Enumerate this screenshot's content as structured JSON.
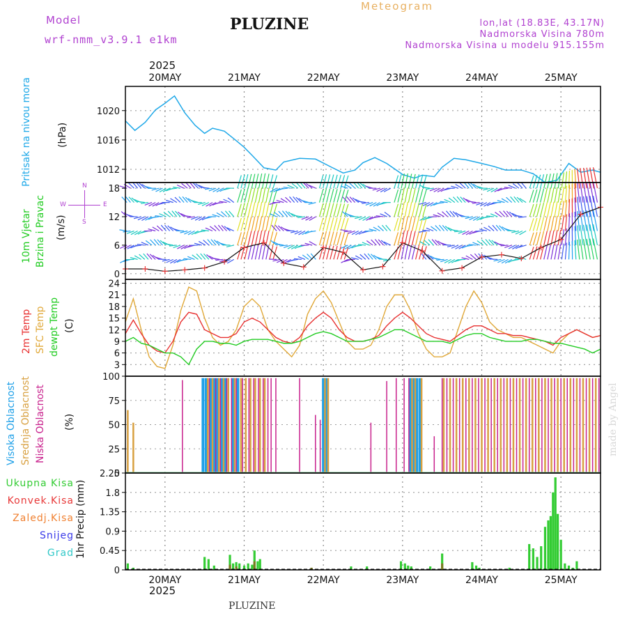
{
  "header": {
    "model_label": "Model",
    "model_name": "wrf-nmm_v3.9.1 e1km",
    "station": "PLUZINE",
    "meteogram": "Meteogram",
    "lonlat": "lon,lat (18.83E, 43.17N)",
    "elevation": "Nadmorska Visina 780m",
    "model_elevation": "Nadmorska Visina u modelu 915.155m",
    "year_top": "2025",
    "year_bottom": "2025",
    "watermark": "made by Angel",
    "footer_station": "PLUZINE"
  },
  "colors": {
    "pressure": "#1ea8e8",
    "wind_label": "#22cc22",
    "temp2m": "#e83030",
    "sfc": "#e0a838",
    "dewpt": "#22cc22",
    "visoka": "#1ea0e8",
    "srednja": "#d8a040",
    "niska": "#c8208c",
    "ukupna": "#33cc33",
    "konvek": "#e83838",
    "zaledj": "#f08030",
    "snijeg": "#3838e8",
    "grad": "#30c8c8",
    "compass": "#b040d0"
  },
  "x_axis": {
    "range_days": [
      0,
      6
    ],
    "date_labels": [
      "20MAY",
      "21MAY",
      "22MAY",
      "23MAY",
      "24MAY",
      "25MAY"
    ],
    "date_positions_days": [
      0.5,
      1.5,
      2.5,
      3.5,
      4.5,
      5.5
    ]
  },
  "panel_labels": {
    "pressure": {
      "name": "Pritisak na nivou mora",
      "unit": "(hPa)"
    },
    "wind": {
      "line1": "10m Vjetar",
      "line2": "Brzina i Pravac",
      "unit": "(m/s)"
    },
    "temp": {
      "t2m": "2m Temp",
      "sfc": "SFC Temp",
      "dew": "dewpt Temp",
      "unit": "(C)"
    },
    "cloud": {
      "high": "Visoka Oblacnost",
      "mid": "Srednja Oblacnost",
      "low": "Niska Oblacnost",
      "unit": "(%)"
    },
    "precip": {
      "unit": "1hr Precip (mm)",
      "legend": [
        "Ukupna Kisa",
        "Konvek.Kisa",
        "Zaledj.Kisa",
        "Snijeg",
        "Grad"
      ]
    }
  },
  "compass": {
    "n": "N",
    "w": "W",
    "e": "E",
    "s": "S"
  },
  "chart_data": [
    {
      "type": "line",
      "ylabel": "Pritisak na nivou mora (hPa)",
      "yticks": [
        1012,
        1016,
        1020
      ],
      "ylim": [
        1010.2,
        1023.3
      ],
      "x": [
        0.0,
        0.12,
        0.25,
        0.38,
        0.5,
        0.62,
        0.75,
        0.88,
        1.0,
        1.1,
        1.25,
        1.4,
        1.5,
        1.6,
        1.75,
        1.9,
        2.0,
        2.2,
        2.4,
        2.6,
        2.75,
        2.9,
        3.0,
        3.15,
        3.3,
        3.5,
        3.65,
        3.75,
        3.9,
        4.0,
        4.15,
        4.3,
        4.5,
        4.65,
        4.8,
        5.0,
        5.15,
        5.3,
        5.45,
        5.6,
        5.75,
        5.9,
        6.0
      ],
      "series": [
        {
          "values": [
            1018.6,
            1017.3,
            1018.4,
            1020.1,
            1021.0,
            1022.0,
            1019.7,
            1018.0,
            1016.9,
            1017.6,
            1017.2,
            1015.9,
            1015.0,
            1013.9,
            1012.2,
            1011.9,
            1013.0,
            1013.5,
            1013.4,
            1012.3,
            1011.5,
            1011.9,
            1012.9,
            1013.6,
            1012.8,
            1011.3,
            1010.8,
            1011.2,
            1011.0,
            1012.3,
            1013.5,
            1013.3,
            1012.8,
            1012.4,
            1011.9,
            1011.9,
            1011.4,
            1010.2,
            1010.5,
            1012.8,
            1011.6,
            1011.9,
            1011.6
          ]
        }
      ]
    },
    {
      "type": "line",
      "ylabel": "10m Vjetar Brzina i Pravac (m/s)",
      "yticks": [
        0,
        6,
        12,
        18
      ],
      "ylim": [
        -1.2,
        19.2
      ],
      "x": [
        0.0,
        0.25,
        0.5,
        0.75,
        1.0,
        1.25,
        1.5,
        1.75,
        2.0,
        2.25,
        2.5,
        2.75,
        3.0,
        3.25,
        3.5,
        3.75,
        4.0,
        4.25,
        4.5,
        4.75,
        5.0,
        5.25,
        5.5,
        5.75,
        6.0
      ],
      "series": [
        {
          "values": [
            1.0,
            1.0,
            0.5,
            0.8,
            1.2,
            2.5,
            5.5,
            6.5,
            2.2,
            1.4,
            5.5,
            4.5,
            0.8,
            1.5,
            6.5,
            4.8,
            0.6,
            1.2,
            3.5,
            4.0,
            3.2,
            5.5,
            7.2,
            12.5,
            14.0
          ]
        }
      ]
    },
    {
      "type": "line",
      "ylabel": "(C)",
      "yticks": [
        3,
        6,
        9,
        12,
        15,
        18,
        21,
        24
      ],
      "ylim": [
        0,
        25
      ],
      "x": [
        0.0,
        0.1,
        0.2,
        0.3,
        0.4,
        0.5,
        0.6,
        0.7,
        0.8,
        0.9,
        1.0,
        1.1,
        1.2,
        1.3,
        1.4,
        1.5,
        1.6,
        1.7,
        1.8,
        1.9,
        2.0,
        2.1,
        2.2,
        2.3,
        2.4,
        2.5,
        2.6,
        2.7,
        2.8,
        2.9,
        3.0,
        3.1,
        3.2,
        3.3,
        3.4,
        3.5,
        3.6,
        3.7,
        3.8,
        3.9,
        4.0,
        4.1,
        4.2,
        4.3,
        4.4,
        4.5,
        4.6,
        4.7,
        4.8,
        4.9,
        5.0,
        5.1,
        5.2,
        5.3,
        5.4,
        5.5,
        5.6,
        5.7,
        5.8,
        5.9,
        6.0
      ],
      "series": [
        {
          "name": "2m Temp",
          "values": [
            11,
            14.5,
            11,
            8,
            6.5,
            6,
            9,
            14,
            16.5,
            16,
            12,
            11,
            10,
            10,
            11,
            14,
            15,
            14,
            12,
            10,
            9,
            8.5,
            10,
            13,
            15,
            16.5,
            15,
            12,
            10,
            9,
            9,
            9.5,
            10.5,
            13,
            15,
            16.5,
            15,
            13,
            11,
            10,
            9.5,
            9,
            10.5,
            12,
            13,
            13,
            12,
            11,
            11,
            10.5,
            10.5,
            10,
            9.5,
            9,
            8,
            10,
            11,
            12,
            11,
            10,
            10.5
          ]
        },
        {
          "name": "SFC Temp",
          "values": [
            14,
            20,
            12,
            5,
            2.5,
            2,
            8,
            17,
            23,
            22,
            15,
            10,
            8,
            9,
            12,
            18,
            20,
            18,
            12,
            9,
            7,
            5,
            8,
            16,
            20,
            22,
            19,
            14,
            9,
            7,
            7,
            8,
            12,
            18,
            21,
            21,
            17,
            11,
            7,
            5,
            5,
            6,
            12,
            18,
            22,
            19,
            14,
            12,
            11,
            10,
            10,
            9,
            8,
            7,
            6,
            9,
            11,
            12,
            11,
            10,
            10.5
          ]
        },
        {
          "name": "dewpt Temp",
          "values": [
            9,
            10,
            8.5,
            8,
            7,
            6,
            6,
            5,
            3,
            7,
            9,
            9,
            8.5,
            8.5,
            8,
            9,
            9.5,
            9.5,
            9.5,
            9,
            8.5,
            8.5,
            9,
            10,
            11,
            11.5,
            11,
            10,
            9,
            9,
            9,
            9.5,
            10,
            11,
            12,
            12,
            11,
            10,
            9,
            9,
            9,
            8.5,
            9.5,
            10.5,
            11,
            11,
            10,
            9.5,
            9,
            9,
            9,
            9.5,
            9.5,
            9,
            8.5,
            8.5,
            8,
            7.5,
            7,
            6,
            7
          ]
        }
      ]
    },
    {
      "type": "bar",
      "ylabel": "(%)",
      "yticks": [
        0,
        25,
        50,
        75,
        100
      ],
      "ylim": [
        0,
        100
      ],
      "series": [
        {
          "name": "Visoka Oblacnost",
          "x": [
            0.98,
            1.02,
            1.08,
            1.12,
            1.16,
            1.22,
            1.26,
            1.36,
            1.42,
            2.5,
            2.54,
            3.6,
            3.64,
            3.68,
            3.72
          ],
          "values": [
            98,
            98,
            98,
            98,
            98,
            98,
            98,
            98,
            98,
            98,
            98,
            98,
            98,
            98,
            98
          ]
        },
        {
          "name": "Srednja Oblacnost",
          "x": [
            0.03,
            0.1,
            1.04,
            1.1,
            1.18,
            1.24,
            1.3,
            1.38,
            1.46,
            1.52,
            1.58,
            1.64,
            1.7,
            1.76,
            2.52,
            2.56,
            3.62,
            3.66,
            3.74,
            4.02,
            4.1,
            4.18,
            4.26,
            4.34,
            4.42,
            4.5,
            4.58,
            4.66,
            4.74,
            4.82,
            4.9,
            4.98,
            5.06,
            5.14,
            5.22,
            5.3,
            5.38,
            5.46,
            5.54,
            5.62,
            5.7,
            5.78,
            5.86,
            5.94
          ],
          "values": [
            65,
            52,
            98,
            98,
            98,
            98,
            98,
            98,
            98,
            98,
            98,
            98,
            98,
            98,
            98,
            98,
            98,
            98,
            98,
            98,
            98,
            98,
            98,
            98,
            98,
            98,
            98,
            98,
            98,
            98,
            98,
            98,
            98,
            98,
            98,
            98,
            98,
            98,
            98,
            98,
            98,
            98,
            98,
            98
          ]
        },
        {
          "name": "Niska Oblacnost",
          "x": [
            0.72,
            1.06,
            1.14,
            1.2,
            1.28,
            1.34,
            1.4,
            1.48,
            1.56,
            1.62,
            1.68,
            1.74,
            1.8,
            1.84,
            1.9,
            2.2,
            2.4,
            2.46,
            3.1,
            3.3,
            3.42,
            3.52,
            3.58,
            3.9,
            4.0,
            4.06,
            4.14,
            4.22,
            4.3,
            4.38,
            4.46,
            4.54,
            4.62,
            4.7,
            4.78,
            4.86,
            4.94,
            5.02,
            5.1,
            5.18,
            5.26,
            5.34,
            5.42,
            5.5,
            5.58,
            5.66,
            5.74,
            5.82,
            5.9,
            5.98
          ],
          "values": [
            96,
            98,
            98,
            98,
            98,
            98,
            98,
            98,
            98,
            98,
            98,
            98,
            98,
            98,
            98,
            98,
            60,
            55,
            52,
            95,
            98,
            98,
            98,
            38,
            98,
            98,
            98,
            98,
            98,
            98,
            98,
            98,
            98,
            98,
            98,
            98,
            98,
            98,
            98,
            98,
            98,
            98,
            98,
            98,
            98,
            98,
            98,
            98,
            98,
            98
          ]
        }
      ]
    },
    {
      "type": "bar",
      "ylabel": "1hr Precip (mm)",
      "yticks": [
        0,
        0.45,
        0.9,
        1.35,
        1.8,
        2.25
      ],
      "ylim": [
        0,
        2.25
      ],
      "series": [
        {
          "name": "Ukupna Kisa",
          "x": [
            0.03,
            0.1,
            1.0,
            1.05,
            1.12,
            1.32,
            1.36,
            1.4,
            1.44,
            1.5,
            1.55,
            1.6,
            1.63,
            1.67,
            1.7,
            2.85,
            3.05,
            3.48,
            3.53,
            3.57,
            3.61,
            3.85,
            4.0,
            4.38,
            4.43,
            4.47,
            4.85,
            5.1,
            5.15,
            5.2,
            5.25,
            5.3,
            5.34,
            5.37,
            5.4,
            5.43,
            5.46,
            5.5,
            5.55,
            5.6,
            5.65,
            5.7
          ],
          "values": [
            0.15,
            0.05,
            0.3,
            0.25,
            0.1,
            0.35,
            0.15,
            0.18,
            0.15,
            0.1,
            0.15,
            0.12,
            0.45,
            0.2,
            0.25,
            0.08,
            0.08,
            0.2,
            0.15,
            0.1,
            0.08,
            0.08,
            0.38,
            0.18,
            0.1,
            0.05,
            0.05,
            0.6,
            0.5,
            0.3,
            0.55,
            1.0,
            1.15,
            1.25,
            1.8,
            2.15,
            1.3,
            0.7,
            0.15,
            0.1,
            0.05,
            0.2
          ]
        },
        {
          "name": "Konvek.Kisa",
          "x": [
            1.32,
            1.4,
            1.63,
            2.35,
            4.0
          ],
          "values": [
            0.12,
            0.08,
            0.2,
            0.05,
            0.15
          ]
        }
      ]
    }
  ]
}
